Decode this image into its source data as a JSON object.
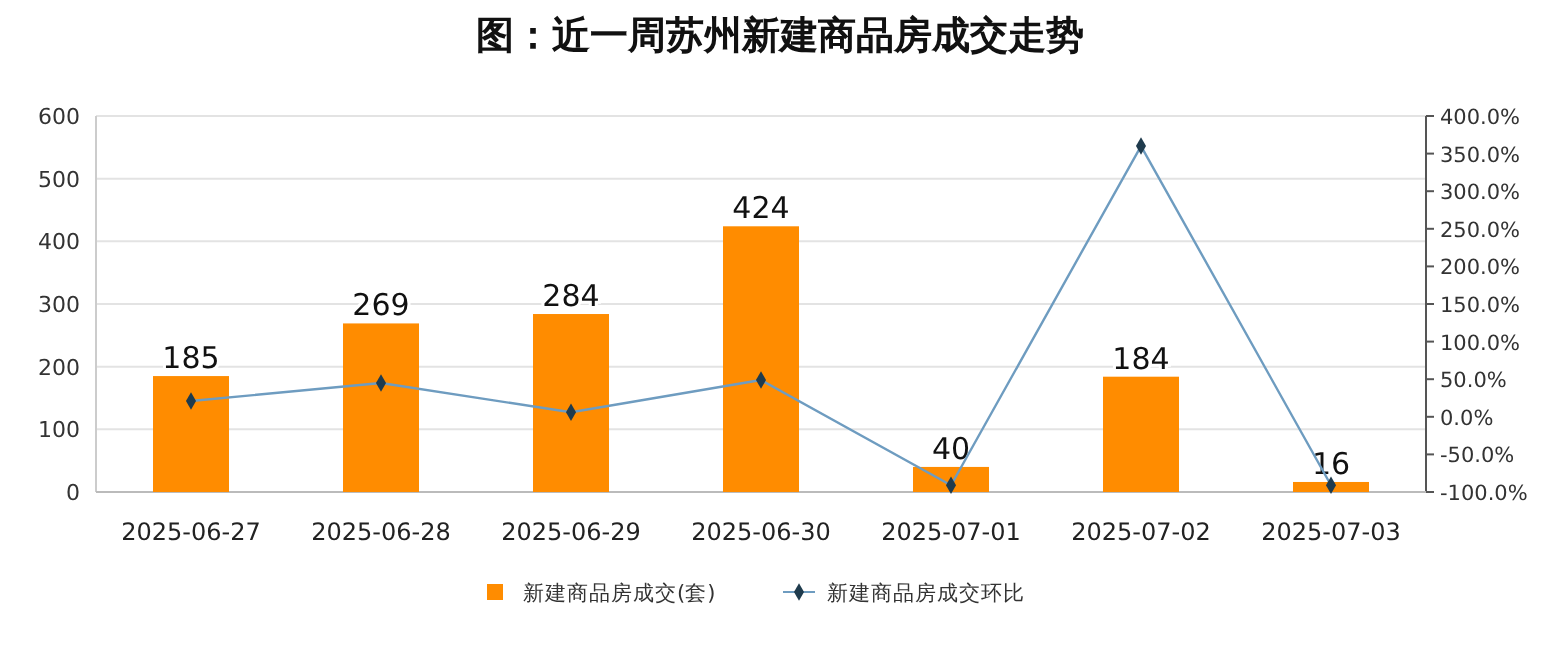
{
  "chart_data": {
    "type": "bar",
    "title": "图：近一周苏州新建商品房成交走势",
    "categories": [
      "2025-06-27",
      "2025-06-28",
      "2025-06-29",
      "2025-06-30",
      "2025-07-01",
      "2025-07-02",
      "2025-07-03"
    ],
    "series": [
      {
        "name": "新建商品房成交(套)",
        "color": "#ff8c00",
        "values": [
          185,
          269,
          284,
          424,
          40,
          184,
          16
        ],
        "data_labels": true
      },
      {
        "name": "新建商品房成交环比",
        "type": "line",
        "axis": "y2",
        "color": "#6e9cc0",
        "marker": "diamond",
        "values": [
          21,
          45,
          6,
          49,
          -91,
          360,
          -91
        ]
      }
    ],
    "ylim": [
      0,
      600
    ],
    "yticks": [
      0,
      100,
      200,
      300,
      400,
      500,
      600
    ],
    "y2lim": [
      -100,
      400
    ],
    "y2ticks": [
      {
        "value": -100,
        "label": "-100.0%"
      },
      {
        "value": -50,
        "label": "-50.0%"
      },
      {
        "value": 0,
        "label": "0.0%"
      },
      {
        "value": 50,
        "label": "50.0%"
      },
      {
        "value": 100,
        "label": "100.0%"
      },
      {
        "value": 150,
        "label": "150.0%"
      },
      {
        "value": 200,
        "label": "200.0%"
      },
      {
        "value": 250,
        "label": "250.0%"
      },
      {
        "value": 300,
        "label": "300.0%"
      },
      {
        "value": 350,
        "label": "350.0%"
      },
      {
        "value": 400,
        "label": "400.0%"
      }
    ],
    "grid": "y",
    "legend": "bottom"
  }
}
